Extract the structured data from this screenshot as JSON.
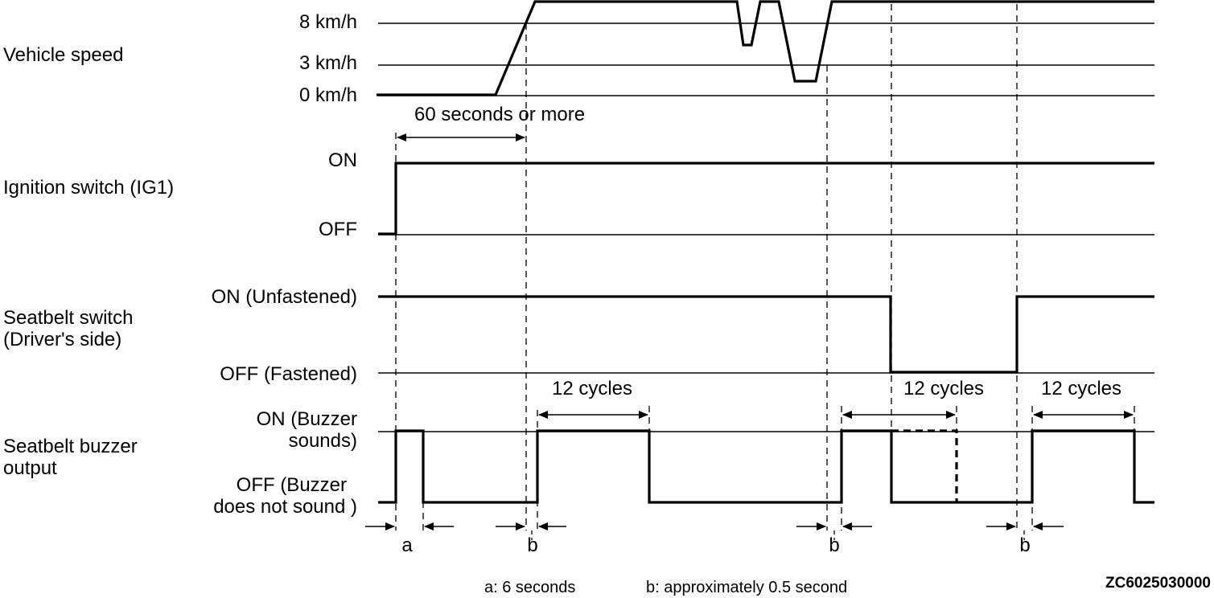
{
  "signals": {
    "vehicle_speed": {
      "label": "Vehicle speed",
      "levels": [
        "8 km/h",
        "3 km/h",
        "0 km/h"
      ]
    },
    "ignition": {
      "label": "Ignition switch (IG1)",
      "levels": [
        "ON",
        "OFF"
      ]
    },
    "seatbelt_switch": {
      "label_lines": [
        "Seatbelt switch",
        "(Driver's side)"
      ],
      "levels": [
        "ON (Unfastened)",
        "OFF (Fastened)"
      ]
    },
    "buzzer": {
      "label_lines": [
        "Seatbelt buzzer",
        "output"
      ],
      "on_lines": [
        "ON (Buzzer",
        "sounds)"
      ],
      "off_lines": [
        "OFF (Buzzer",
        "does not sound )"
      ]
    }
  },
  "dimensions": {
    "duration": "60 seconds  or more",
    "cycles": "12 cycles"
  },
  "markers": {
    "a": "a",
    "b": "b"
  },
  "legend": {
    "a": "a: 6 seconds",
    "b": "b: approximately 0.5 second"
  },
  "figure_id": "ZC6025030000"
}
